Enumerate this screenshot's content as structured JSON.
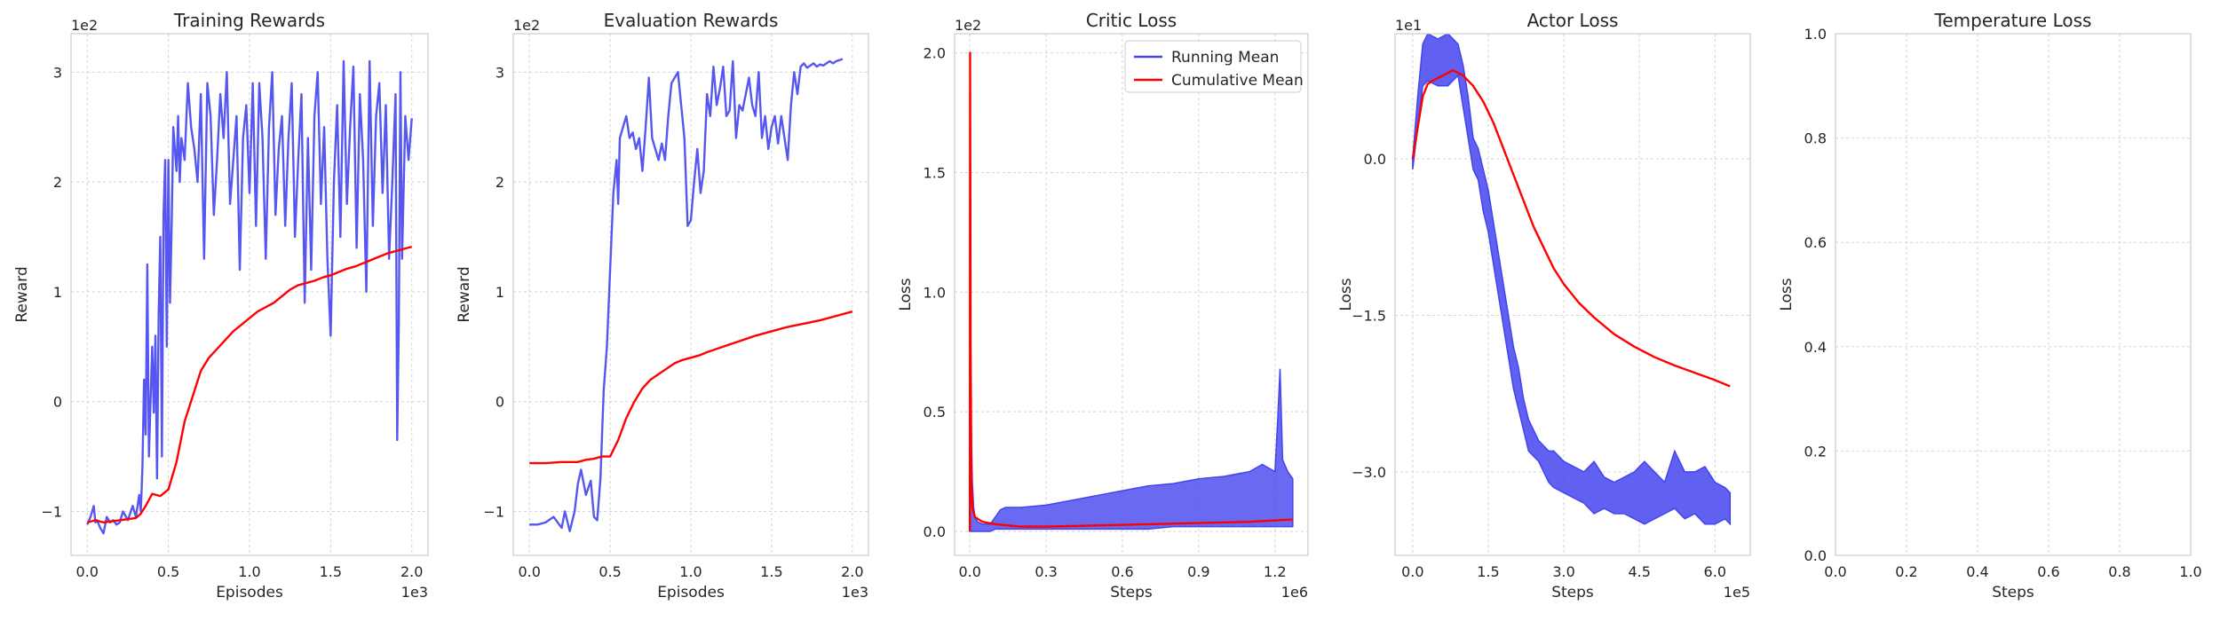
{
  "chart_data": [
    {
      "type": "line",
      "title": "Training Rewards",
      "xlabel": "Episodes",
      "ylabel": "Reward",
      "x_offset_text": "1e3",
      "y_offset_text": "1e2",
      "xlim": [
        -0.1,
        2.1
      ],
      "ylim": [
        -1.4,
        3.35
      ],
      "xticks": [
        0.0,
        0.5,
        1.0,
        1.5,
        2.0
      ],
      "xtick_labels": [
        "0.0",
        "0.5",
        "1.0",
        "1.5",
        "2.0"
      ],
      "yticks": [
        -1,
        0,
        1,
        2,
        3
      ],
      "ytick_labels": [
        "−1",
        "0",
        "1",
        "2",
        "3"
      ],
      "grid": true,
      "legend": null,
      "series": [
        {
          "color": "#4444ee",
          "x": [
            0.0,
            0.02,
            0.04,
            0.05,
            0.06,
            0.08,
            0.1,
            0.12,
            0.14,
            0.16,
            0.18,
            0.2,
            0.22,
            0.25,
            0.28,
            0.3,
            0.32,
            0.33,
            0.34,
            0.35,
            0.36,
            0.37,
            0.38,
            0.39,
            0.4,
            0.41,
            0.42,
            0.43,
            0.44,
            0.45,
            0.46,
            0.47,
            0.48,
            0.49,
            0.5,
            0.51,
            0.52,
            0.53,
            0.54,
            0.55,
            0.56,
            0.57,
            0.58,
            0.6,
            0.62,
            0.64,
            0.66,
            0.68,
            0.7,
            0.72,
            0.74,
            0.76,
            0.78,
            0.8,
            0.82,
            0.84,
            0.86,
            0.88,
            0.9,
            0.92,
            0.94,
            0.96,
            0.98,
            1.0,
            1.02,
            1.04,
            1.06,
            1.08,
            1.1,
            1.12,
            1.14,
            1.16,
            1.18,
            1.2,
            1.22,
            1.24,
            1.26,
            1.28,
            1.3,
            1.32,
            1.34,
            1.36,
            1.38,
            1.4,
            1.42,
            1.44,
            1.46,
            1.48,
            1.5,
            1.52,
            1.54,
            1.56,
            1.58,
            1.6,
            1.62,
            1.64,
            1.66,
            1.68,
            1.7,
            1.72,
            1.74,
            1.76,
            1.78,
            1.8,
            1.82,
            1.84,
            1.86,
            1.88,
            1.9,
            1.91,
            1.92,
            1.93,
            1.94,
            1.96,
            1.98,
            2.0
          ],
          "y": [
            -1.12,
            -1.05,
            -0.95,
            -1.1,
            -1.08,
            -1.15,
            -1.2,
            -1.05,
            -1.1,
            -1.08,
            -1.12,
            -1.1,
            -1.0,
            -1.08,
            -0.95,
            -1.05,
            -0.85,
            -1.0,
            -0.6,
            0.2,
            -0.3,
            1.25,
            -0.5,
            0.0,
            0.5,
            -0.1,
            0.6,
            -0.7,
            0.8,
            1.5,
            -0.5,
            1.7,
            2.2,
            0.5,
            2.2,
            0.9,
            1.6,
            2.5,
            2.3,
            2.1,
            2.6,
            2.0,
            2.4,
            2.2,
            2.9,
            2.5,
            2.3,
            2.0,
            2.8,
            1.3,
            2.9,
            2.6,
            1.7,
            2.2,
            2.8,
            2.4,
            3.0,
            1.8,
            2.2,
            2.6,
            1.2,
            2.4,
            2.7,
            1.9,
            2.9,
            1.6,
            2.9,
            2.4,
            1.3,
            2.5,
            3.0,
            1.7,
            2.3,
            2.6,
            1.6,
            2.4,
            2.9,
            1.5,
            2.2,
            2.8,
            0.9,
            2.4,
            1.2,
            2.6,
            3.0,
            1.8,
            2.5,
            1.3,
            0.6,
            2.0,
            2.7,
            1.5,
            3.1,
            1.8,
            2.5,
            3.05,
            1.4,
            2.8,
            2.2,
            1.0,
            3.1,
            1.6,
            2.6,
            2.9,
            1.9,
            2.7,
            1.3,
            2.0,
            2.8,
            -0.35,
            0.7,
            3.0,
            1.3,
            2.6,
            2.2,
            2.58
          ]
        },
        {
          "color": "#ff0000",
          "x": [
            0.0,
            0.05,
            0.1,
            0.15,
            0.2,
            0.25,
            0.3,
            0.33,
            0.36,
            0.4,
            0.45,
            0.5,
            0.55,
            0.6,
            0.65,
            0.7,
            0.75,
            0.8,
            0.85,
            0.9,
            0.95,
            1.0,
            1.05,
            1.1,
            1.15,
            1.2,
            1.25,
            1.3,
            1.35,
            1.4,
            1.45,
            1.5,
            1.55,
            1.6,
            1.65,
            1.7,
            1.75,
            1.8,
            1.85,
            1.9,
            1.95,
            2.0
          ],
          "y": [
            -1.1,
            -1.08,
            -1.1,
            -1.09,
            -1.08,
            -1.07,
            -1.06,
            -1.02,
            -0.95,
            -0.84,
            -0.86,
            -0.8,
            -0.55,
            -0.18,
            0.05,
            0.28,
            0.4,
            0.48,
            0.56,
            0.64,
            0.7,
            0.76,
            0.82,
            0.86,
            0.9,
            0.96,
            1.02,
            1.06,
            1.08,
            1.1,
            1.13,
            1.15,
            1.18,
            1.21,
            1.23,
            1.26,
            1.29,
            1.32,
            1.35,
            1.37,
            1.39,
            1.41
          ]
        }
      ]
    },
    {
      "type": "line",
      "title": "Evaluation Rewards",
      "xlabel": "Episodes",
      "ylabel": "Reward",
      "x_offset_text": "1e3",
      "y_offset_text": "1e2",
      "xlim": [
        -0.1,
        2.1
      ],
      "ylim": [
        -1.4,
        3.35
      ],
      "xticks": [
        0.0,
        0.5,
        1.0,
        1.5,
        2.0
      ],
      "xtick_labels": [
        "0.0",
        "0.5",
        "1.0",
        "1.5",
        "2.0"
      ],
      "yticks": [
        -1,
        0,
        1,
        2,
        3
      ],
      "ytick_labels": [
        "−1",
        "0",
        "1",
        "2",
        "3"
      ],
      "grid": true,
      "legend": null,
      "series": [
        {
          "color": "#4444ee",
          "x": [
            0.0,
            0.05,
            0.1,
            0.15,
            0.2,
            0.22,
            0.25,
            0.28,
            0.3,
            0.32,
            0.35,
            0.38,
            0.4,
            0.42,
            0.44,
            0.46,
            0.48,
            0.5,
            0.52,
            0.54,
            0.55,
            0.56,
            0.58,
            0.6,
            0.62,
            0.64,
            0.66,
            0.68,
            0.7,
            0.72,
            0.74,
            0.76,
            0.78,
            0.8,
            0.82,
            0.84,
            0.86,
            0.88,
            0.9,
            0.92,
            0.94,
            0.96,
            0.98,
            1.0,
            1.02,
            1.04,
            1.06,
            1.08,
            1.1,
            1.12,
            1.14,
            1.16,
            1.18,
            1.2,
            1.22,
            1.24,
            1.26,
            1.28,
            1.3,
            1.32,
            1.34,
            1.36,
            1.38,
            1.4,
            1.42,
            1.44,
            1.46,
            1.48,
            1.5,
            1.52,
            1.54,
            1.56,
            1.58,
            1.6,
            1.62,
            1.64,
            1.66,
            1.68,
            1.7,
            1.72,
            1.74,
            1.76,
            1.78,
            1.8,
            1.82,
            1.84,
            1.86,
            1.88,
            1.9,
            1.92,
            1.94
          ],
          "y": [
            -1.12,
            -1.12,
            -1.1,
            -1.05,
            -1.15,
            -1.0,
            -1.18,
            -1.0,
            -0.75,
            -0.62,
            -0.85,
            -0.72,
            -1.05,
            -1.08,
            -0.7,
            0.1,
            0.5,
            1.2,
            1.9,
            2.2,
            1.8,
            2.4,
            2.5,
            2.6,
            2.4,
            2.45,
            2.3,
            2.4,
            2.1,
            2.5,
            2.95,
            2.4,
            2.3,
            2.2,
            2.35,
            2.2,
            2.6,
            2.9,
            2.95,
            3.0,
            2.7,
            2.4,
            1.6,
            1.65,
            2.0,
            2.3,
            1.9,
            2.1,
            2.8,
            2.6,
            3.05,
            2.7,
            2.85,
            3.05,
            2.6,
            2.65,
            3.1,
            2.4,
            2.7,
            2.65,
            2.8,
            2.95,
            2.7,
            2.6,
            3.0,
            2.4,
            2.6,
            2.3,
            2.5,
            2.6,
            2.35,
            2.6,
            2.4,
            2.2,
            2.7,
            3.0,
            2.8,
            3.05,
            3.08,
            3.04,
            3.06,
            3.08,
            3.05,
            3.07,
            3.06,
            3.08,
            3.1,
            3.08,
            3.1,
            3.11,
            3.12
          ]
        },
        {
          "color": "#ff0000",
          "x": [
            0.0,
            0.1,
            0.2,
            0.3,
            0.35,
            0.4,
            0.45,
            0.5,
            0.55,
            0.6,
            0.65,
            0.7,
            0.75,
            0.8,
            0.85,
            0.9,
            0.95,
            1.0,
            1.05,
            1.1,
            1.2,
            1.3,
            1.4,
            1.5,
            1.6,
            1.7,
            1.8,
            1.9,
            2.0
          ],
          "y": [
            -0.56,
            -0.56,
            -0.55,
            -0.55,
            -0.53,
            -0.52,
            -0.5,
            -0.5,
            -0.35,
            -0.15,
            0.0,
            0.12,
            0.2,
            0.25,
            0.3,
            0.35,
            0.38,
            0.4,
            0.42,
            0.45,
            0.5,
            0.55,
            0.6,
            0.64,
            0.68,
            0.71,
            0.74,
            0.78,
            0.82
          ]
        }
      ]
    },
    {
      "type": "line",
      "title": "Critic Loss",
      "xlabel": "Steps",
      "ylabel": "Loss",
      "x_offset_text": "1e6",
      "y_offset_text": "1e2",
      "xlim": [
        -0.06,
        1.33
      ],
      "ylim": [
        -0.1,
        2.08
      ],
      "xticks": [
        0.0,
        0.3,
        0.6,
        0.9,
        1.2
      ],
      "xtick_labels": [
        "0.0",
        "0.3",
        "0.6",
        "0.9",
        "1.2"
      ],
      "yticks": [
        0.0,
        0.5,
        1.0,
        1.5,
        2.0
      ],
      "ytick_labels": [
        "0.0",
        "0.5",
        "1.0",
        "1.5",
        "2.0"
      ],
      "grid": true,
      "legend": {
        "position": "top-right",
        "entries": [
          "Running Mean",
          "Cumulative Mean"
        ]
      },
      "series": [
        {
          "name": "Running Mean",
          "color": "#4444ee",
          "x": [
            0.0,
            0.005,
            0.01,
            0.015,
            0.02,
            0.03,
            0.05,
            0.08,
            0.1,
            0.12,
            0.14,
            0.2,
            0.3,
            0.4,
            0.5,
            0.6,
            0.7,
            0.8,
            0.9,
            1.0,
            1.1,
            1.15,
            1.2,
            1.21,
            1.22,
            1.23,
            1.25,
            1.27
          ],
          "y": [
            0.05,
            0.45,
            0.2,
            0.1,
            0.06,
            0.04,
            0.03,
            0.03,
            0.06,
            0.09,
            0.1,
            0.1,
            0.11,
            0.13,
            0.15,
            0.17,
            0.19,
            0.2,
            0.22,
            0.23,
            0.25,
            0.28,
            0.25,
            0.45,
            0.68,
            0.3,
            0.25,
            0.22
          ],
          "y_low": [
            0.0,
            0.0,
            0.0,
            0.0,
            0.0,
            0.0,
            0.0,
            0.0,
            0.01,
            0.01,
            0.01,
            0.01,
            0.01,
            0.01,
            0.01,
            0.01,
            0.01,
            0.02,
            0.02,
            0.02,
            0.02,
            0.02,
            0.02,
            0.02,
            0.02,
            0.02,
            0.02,
            0.02
          ]
        },
        {
          "name": "Cumulative Mean",
          "color": "#ff0000",
          "x": [
            0.0,
            0.001,
            0.003,
            0.006,
            0.01,
            0.02,
            0.05,
            0.1,
            0.2,
            0.3,
            0.5,
            0.7,
            0.9,
            1.1,
            1.27
          ],
          "y": [
            0.0,
            2.0,
            0.8,
            0.2,
            0.1,
            0.06,
            0.04,
            0.03,
            0.02,
            0.02,
            0.025,
            0.03,
            0.035,
            0.04,
            0.05
          ]
        }
      ]
    },
    {
      "type": "line",
      "title": "Actor Loss",
      "xlabel": "Steps",
      "ylabel": "Loss",
      "x_offset_text": "1e5",
      "y_offset_text": "1e1",
      "xlim": [
        -0.35,
        6.7
      ],
      "ylim": [
        -3.8,
        1.2
      ],
      "xticks": [
        0.0,
        1.5,
        3.0,
        4.5,
        6.0
      ],
      "xtick_labels": [
        "0.0",
        "1.5",
        "3.0",
        "4.5",
        "6.0"
      ],
      "yticks": [
        0.0,
        -1.5,
        -3.0
      ],
      "ytick_labels": [
        "0.0",
        "−1.5",
        "−3.0"
      ],
      "grid": true,
      "legend": null,
      "series": [
        {
          "color": "#4444ee",
          "band": true,
          "x": [
            0.0,
            0.1,
            0.2,
            0.3,
            0.5,
            0.7,
            0.9,
            1.0,
            1.1,
            1.2,
            1.3,
            1.4,
            1.5,
            1.6,
            1.7,
            1.8,
            1.9,
            2.0,
            2.1,
            2.2,
            2.3,
            2.4,
            2.5,
            2.6,
            2.7,
            2.8,
            3.0,
            3.2,
            3.4,
            3.6,
            3.8,
            4.0,
            4.2,
            4.4,
            4.6,
            4.8,
            5.0,
            5.2,
            5.4,
            5.6,
            5.8,
            6.0,
            6.2,
            6.3
          ],
          "upper": [
            0.0,
            0.6,
            1.1,
            1.2,
            1.15,
            1.2,
            1.1,
            0.9,
            0.6,
            0.2,
            0.1,
            -0.1,
            -0.3,
            -0.6,
            -0.9,
            -1.2,
            -1.5,
            -1.8,
            -2.0,
            -2.3,
            -2.5,
            -2.6,
            -2.7,
            -2.75,
            -2.8,
            -2.8,
            -2.9,
            -2.95,
            -3.0,
            -2.9,
            -3.05,
            -3.1,
            -3.05,
            -3.0,
            -2.9,
            -3.0,
            -3.1,
            -2.8,
            -3.0,
            -3.0,
            -2.95,
            -3.1,
            -3.15,
            -3.2
          ],
          "lower": [
            -0.1,
            0.3,
            0.7,
            0.75,
            0.7,
            0.7,
            0.8,
            0.5,
            0.2,
            -0.1,
            -0.2,
            -0.5,
            -0.7,
            -1.0,
            -1.3,
            -1.6,
            -1.9,
            -2.2,
            -2.4,
            -2.6,
            -2.8,
            -2.85,
            -2.9,
            -3.0,
            -3.1,
            -3.15,
            -3.2,
            -3.25,
            -3.3,
            -3.4,
            -3.35,
            -3.4,
            -3.4,
            -3.45,
            -3.5,
            -3.45,
            -3.4,
            -3.35,
            -3.45,
            -3.4,
            -3.5,
            -3.5,
            -3.45,
            -3.5
          ]
        },
        {
          "color": "#ff0000",
          "x": [
            0.0,
            0.1,
            0.2,
            0.3,
            0.4,
            0.6,
            0.8,
            1.0,
            1.2,
            1.4,
            1.6,
            1.8,
            2.0,
            2.2,
            2.4,
            2.6,
            2.8,
            3.0,
            3.3,
            3.6,
            4.0,
            4.4,
            4.8,
            5.2,
            5.6,
            6.0,
            6.3
          ],
          "y": [
            0.0,
            0.3,
            0.6,
            0.72,
            0.75,
            0.8,
            0.85,
            0.8,
            0.7,
            0.55,
            0.35,
            0.1,
            -0.15,
            -0.4,
            -0.65,
            -0.85,
            -1.05,
            -1.2,
            -1.38,
            -1.52,
            -1.68,
            -1.8,
            -1.9,
            -1.98,
            -2.05,
            -2.12,
            -2.18
          ]
        }
      ]
    },
    {
      "type": "line",
      "title": "Temperature Loss",
      "xlabel": "Steps",
      "ylabel": "Loss",
      "x_offset_text": "",
      "y_offset_text": "",
      "xlim": [
        0.0,
        1.0
      ],
      "ylim": [
        0.0,
        1.0
      ],
      "xticks": [
        0.0,
        0.2,
        0.4,
        0.6,
        0.8,
        1.0
      ],
      "xtick_labels": [
        "0.0",
        "0.2",
        "0.4",
        "0.6",
        "0.8",
        "1.0"
      ],
      "yticks": [
        0.0,
        0.2,
        0.4,
        0.6,
        0.8,
        1.0
      ],
      "ytick_labels": [
        "0.0",
        "0.2",
        "0.4",
        "0.6",
        "0.8",
        "1.0"
      ],
      "grid": true,
      "legend": null,
      "series": []
    }
  ]
}
